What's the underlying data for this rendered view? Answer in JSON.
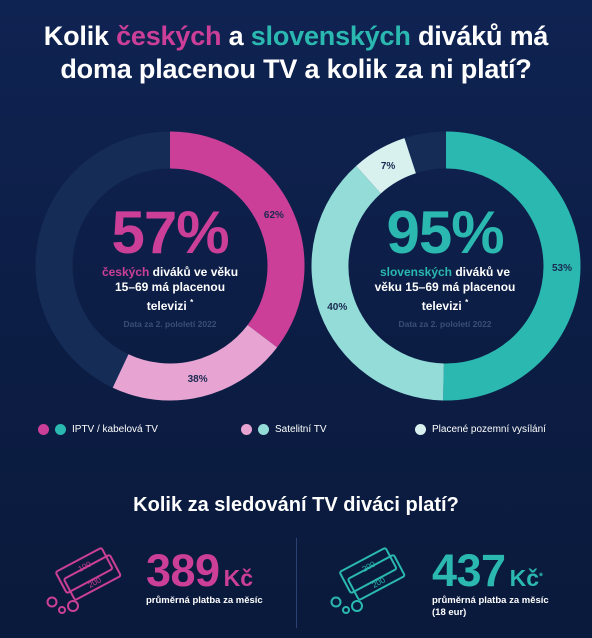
{
  "title": {
    "part1": "Kolik ",
    "part2": "českých",
    "part3": " a ",
    "part4": "slovenských",
    "part5": " diváků má",
    "line2": "doma placenou TV a kolik za ni platí?"
  },
  "colors": {
    "background": "#0c1d44",
    "cz_iptv": "#cc3f98",
    "cz_sat": "#e7a4d2",
    "sk_iptv": "#2ab8b0",
    "sk_sat": "#93dcd8",
    "terrestrial": "#d8f1ef",
    "unused_track": "#152c57"
  },
  "chart_data": [
    {
      "type": "pie",
      "subtype": "donut",
      "country": "CZ",
      "center_value": "57%",
      "center_text_colored": "českých",
      "center_text_line1": " diváků ve věku",
      "center_text_line2": "15–69 má placenou",
      "center_text_line3": "televizi",
      "footnote_mark": "*",
      "note": "Data za 2. pololetí 2022",
      "paid_share_percent": 57,
      "slices": [
        {
          "label": "IPTV / kabelová TV",
          "value": 62,
          "label_text": "62%",
          "color": "#cc3f98"
        },
        {
          "label": "Satelitní TV",
          "value": 38,
          "label_text": "38%",
          "color": "#e7a4d2"
        }
      ]
    },
    {
      "type": "pie",
      "subtype": "donut",
      "country": "SK",
      "center_value": "95%",
      "center_text_colored": "slovenských",
      "center_text_line1": " diváků ve",
      "center_text_line2": "věku 15–69 má placenou",
      "center_text_line3": "televizi",
      "footnote_mark": "*",
      "note": "Data za 2. pololetí 2022",
      "paid_share_percent": 95,
      "slices": [
        {
          "label": "IPTV / kabelová TV",
          "value": 53,
          "label_text": "53%",
          "color": "#2ab8b0"
        },
        {
          "label": "Satelitní TV",
          "value": 40,
          "label_text": "40%",
          "color": "#93dcd8"
        },
        {
          "label": "Placené pozemní vysílání",
          "value": 7,
          "label_text": "7%",
          "color": "#d8f1ef"
        }
      ]
    }
  ],
  "legend": {
    "iptv": "IPTV / kabelová TV",
    "sat": "Satelitní TV",
    "terrestrial": "Placené pozemní vysílání"
  },
  "subtitle": "Kolik za sledování TV diváci platí?",
  "prices": {
    "cz": {
      "amount": "389",
      "currency": "Kč",
      "label": "průměrná platba za měsíc"
    },
    "sk": {
      "amount": "437",
      "currency": "Kč",
      "footnote_mark": "*",
      "label": "průměrná platba za měsíc",
      "extra": "(18 eur)"
    }
  },
  "icons": {
    "banknote_values": [
      "100",
      "200"
    ],
    "sk_banknote_values": [
      "200",
      "200"
    ]
  }
}
